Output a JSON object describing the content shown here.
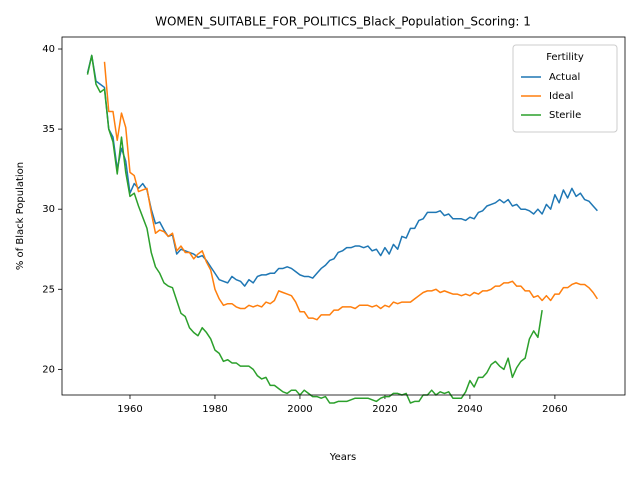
{
  "chart_data": {
    "type": "line",
    "title": "WOMEN_SUITABLE_FOR_POLITICS_Black_Population_Scoring: 1",
    "x_label": "Years",
    "y_label": "% of Black Population",
    "legend_title": "Fertility",
    "legend": "upper right",
    "grid": false,
    "xlim": [
      1944,
      2076.5
    ],
    "xticks": [
      1960,
      1980,
      2000,
      2020,
      2040,
      2060
    ],
    "ylim": [
      18.4,
      40.75
    ],
    "yticks": [
      20,
      25,
      30,
      35,
      40
    ],
    "x": [
      1950,
      1951,
      1952,
      1953,
      1954,
      1955,
      1956,
      1957,
      1958,
      1959,
      1960,
      1961,
      1962,
      1963,
      1964,
      1965,
      1966,
      1967,
      1968,
      1969,
      1970,
      1971,
      1972,
      1973,
      1974,
      1975,
      1976,
      1977,
      1978,
      1979,
      1980,
      1981,
      1982,
      1983,
      1984,
      1985,
      1986,
      1987,
      1988,
      1989,
      1990,
      1991,
      1992,
      1993,
      1994,
      1995,
      1996,
      1997,
      1998,
      1999,
      2000,
      2001,
      2002,
      2003,
      2004,
      2005,
      2006,
      2007,
      2008,
      2009,
      2010,
      2011,
      2012,
      2013,
      2014,
      2015,
      2016,
      2017,
      2018,
      2019,
      2020,
      2021,
      2022,
      2023,
      2024,
      2025,
      2026,
      2027,
      2028,
      2029,
      2030,
      2031,
      2032,
      2033,
      2034,
      2035,
      2036,
      2037,
      2038,
      2039,
      2040,
      2041,
      2042,
      2043,
      2044,
      2045,
      2046,
      2047,
      2048,
      2049,
      2050,
      2051,
      2052,
      2053,
      2054,
      2055,
      2056,
      2057,
      2058,
      2059,
      2060,
      2061,
      2062,
      2063,
      2064,
      2065,
      2066,
      2067,
      2068,
      2069,
      2070
    ],
    "series": [
      {
        "name": "Actual",
        "color": "#1f77b4",
        "values": [
          38.5,
          39.6,
          38.0,
          37.8,
          37.6,
          35.0,
          34.5,
          32.5,
          33.8,
          33.0,
          31.0,
          31.6,
          31.3,
          31.6,
          31.2,
          30.0,
          29.1,
          29.2,
          28.7,
          28.3,
          28.4,
          27.2,
          27.5,
          27.4,
          27.3,
          27.2,
          27.0,
          27.1,
          26.8,
          26.4,
          26.0,
          25.6,
          25.5,
          25.4,
          25.8,
          25.6,
          25.5,
          25.2,
          25.6,
          25.4,
          25.8,
          25.9,
          25.9,
          26.0,
          26.0,
          26.3,
          26.3,
          26.4,
          26.3,
          26.1,
          25.9,
          25.8,
          25.8,
          25.7,
          26.0,
          26.3,
          26.5,
          26.8,
          26.9,
          27.3,
          27.4,
          27.6,
          27.6,
          27.7,
          27.7,
          27.6,
          27.7,
          27.4,
          27.5,
          27.1,
          27.6,
          27.2,
          27.8,
          27.5,
          28.3,
          28.2,
          28.8,
          28.8,
          29.3,
          29.4,
          29.8,
          29.8,
          29.8,
          29.9,
          29.6,
          29.7,
          29.4,
          29.4,
          29.4,
          29.3,
          29.5,
          29.4,
          29.8,
          29.9,
          30.2,
          30.3,
          30.4,
          30.6,
          30.4,
          30.6,
          30.2,
          30.3,
          30.0,
          30.0,
          29.9,
          29.7,
          30.0,
          29.7,
          30.3,
          30.0,
          30.9,
          30.4,
          31.2,
          30.7,
          31.3,
          30.8,
          31.0,
          30.6,
          30.5,
          30.2,
          29.9
        ]
      },
      {
        "name": "Ideal",
        "color": "#ff7f0e",
        "values": [
          null,
          null,
          null,
          null,
          39.2,
          36.1,
          36.1,
          34.3,
          36.0,
          35.1,
          32.3,
          32.1,
          31.1,
          31.2,
          31.3,
          29.8,
          28.5,
          28.7,
          28.6,
          28.3,
          28.5,
          27.4,
          27.7,
          27.3,
          27.3,
          26.9,
          27.2,
          27.4,
          26.7,
          26.2,
          25.0,
          24.4,
          24.0,
          24.1,
          24.1,
          23.9,
          23.8,
          23.8,
          24.0,
          23.9,
          24.0,
          23.9,
          24.2,
          24.1,
          24.3,
          24.9,
          24.8,
          24.7,
          24.6,
          24.2,
          23.6,
          23.6,
          23.2,
          23.2,
          23.1,
          23.4,
          23.4,
          23.4,
          23.7,
          23.7,
          23.9,
          23.9,
          23.9,
          23.8,
          24.0,
          24.0,
          24.0,
          23.9,
          24.0,
          23.8,
          24.0,
          23.9,
          24.2,
          24.1,
          24.2,
          24.2,
          24.2,
          24.4,
          24.6,
          24.8,
          24.9,
          24.9,
          25.0,
          24.8,
          24.9,
          24.8,
          24.7,
          24.7,
          24.6,
          24.7,
          24.6,
          24.8,
          24.7,
          24.9,
          24.9,
          25.0,
          25.2,
          25.2,
          25.4,
          25.4,
          25.5,
          25.2,
          25.2,
          24.9,
          24.9,
          24.5,
          24.6,
          24.3,
          24.6,
          24.3,
          24.7,
          24.7,
          25.1,
          25.1,
          25.3,
          25.4,
          25.3,
          25.3,
          25.1,
          24.8,
          24.4
        ]
      },
      {
        "name": "Sterile",
        "color": "#2ca02c",
        "values": [
          38.4,
          39.6,
          37.8,
          37.3,
          37.5,
          35.0,
          34.2,
          32.2,
          34.5,
          32.3,
          30.8,
          31.0,
          30.2,
          29.5,
          28.8,
          27.3,
          26.4,
          26.0,
          25.4,
          25.2,
          25.1,
          24.3,
          23.5,
          23.3,
          22.6,
          22.3,
          22.1,
          22.6,
          22.3,
          21.9,
          21.2,
          21.0,
          20.5,
          20.6,
          20.4,
          20.4,
          20.2,
          20.2,
          20.2,
          20.0,
          19.6,
          19.4,
          19.5,
          19.0,
          19.0,
          18.8,
          18.6,
          18.5,
          18.7,
          18.7,
          18.4,
          18.7,
          18.5,
          18.3,
          18.3,
          18.2,
          18.3,
          17.9,
          17.9,
          18.0,
          18.0,
          18.0,
          18.1,
          18.2,
          18.2,
          18.2,
          18.2,
          18.1,
          18.0,
          18.2,
          18.3,
          18.3,
          18.5,
          18.5,
          18.4,
          18.5,
          17.9,
          18.0,
          18.0,
          18.4,
          18.4,
          18.7,
          18.4,
          18.6,
          18.5,
          18.6,
          18.2,
          18.2,
          18.2,
          18.6,
          19.3,
          18.9,
          19.5,
          19.5,
          19.8,
          20.3,
          20.5,
          20.2,
          20.0,
          20.7,
          19.5,
          20.1,
          20.5,
          20.7,
          21.9,
          22.4,
          22.0,
          23.7,
          null,
          null,
          null,
          null,
          null,
          null,
          null,
          null,
          null,
          null,
          null,
          null,
          null
        ]
      }
    ]
  }
}
